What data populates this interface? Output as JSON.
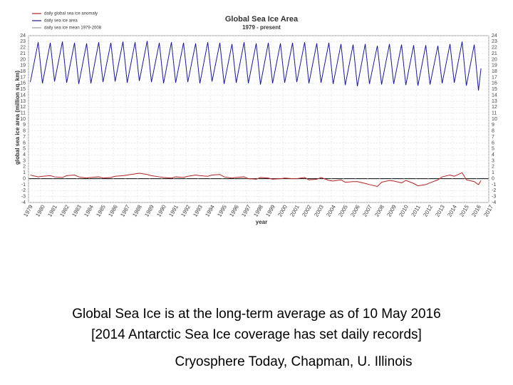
{
  "chart_data": {
    "type": "line",
    "title": "Global Sea Ice Area",
    "subtitle": "1979 - present",
    "xlabel": "year",
    "ylabel": "global sea ice area (million sq. km)",
    "legend": [
      {
        "name": "daily global sea ice anomaly",
        "color": "#b22222"
      },
      {
        "name": "daily sea ice area",
        "color": "#1a1a8c"
      },
      {
        "name": "daily sea ice mean 1979-2008",
        "color": "#999999"
      }
    ],
    "x": [
      1979.15,
      1979.8,
      1980.15,
      1980.8,
      1981.15,
      1981.8,
      1982.15,
      1982.8,
      1983.15,
      1983.8,
      1984.15,
      1984.8,
      1985.15,
      1985.8,
      1986.15,
      1986.8,
      1987.15,
      1987.8,
      1988.15,
      1988.8,
      1989.15,
      1989.8,
      1990.15,
      1990.8,
      1991.15,
      1991.8,
      1992.15,
      1992.8,
      1993.15,
      1993.8,
      1994.15,
      1994.8,
      1995.15,
      1995.8,
      1996.15,
      1996.8,
      1997.15,
      1997.8,
      1998.15,
      1998.8,
      1999.15,
      1999.8,
      2000.15,
      2000.8,
      2001.15,
      2001.8,
      2002.15,
      2002.8,
      2003.15,
      2003.8,
      2004.15,
      2004.8,
      2005.15,
      2005.8,
      2006.15,
      2006.8,
      2007.15,
      2007.8,
      2008.15,
      2008.8,
      2009.15,
      2009.8,
      2010.15,
      2010.8,
      2011.15,
      2011.8,
      2012.15,
      2012.8,
      2013.15,
      2013.8,
      2014.15,
      2014.8,
      2015.15,
      2015.8,
      2016.15,
      2016.36
    ],
    "series": [
      {
        "name": "daily sea ice area",
        "color": "#1a1a8c",
        "values": [
          16.2,
          22.9,
          16.0,
          22.8,
          16.3,
          23.0,
          16.1,
          22.8,
          15.9,
          22.7,
          16.0,
          22.9,
          16.2,
          22.8,
          16.3,
          23.0,
          16.1,
          22.9,
          16.4,
          23.1,
          16.2,
          22.8,
          16.0,
          22.9,
          16.1,
          22.8,
          16.2,
          22.7,
          16.0,
          22.9,
          16.3,
          22.8,
          15.9,
          22.6,
          16.1,
          22.9,
          16.0,
          22.7,
          15.8,
          22.8,
          16.0,
          22.7,
          16.1,
          22.8,
          16.2,
          22.9,
          16.0,
          22.7,
          16.1,
          22.8,
          15.9,
          22.6,
          15.7,
          22.5,
          15.5,
          22.6,
          15.9,
          22.3,
          15.8,
          22.6,
          15.9,
          22.5,
          15.7,
          22.4,
          15.6,
          22.4,
          15.8,
          22.3,
          16.0,
          22.6,
          16.1,
          23.0,
          15.6,
          22.5,
          14.8,
          18.5
        ]
      },
      {
        "name": "daily global sea ice anomaly",
        "color": "#b22222",
        "values": [
          0.6,
          0.3,
          0.4,
          0.5,
          0.3,
          0.2,
          0.5,
          0.6,
          0.3,
          0.1,
          0.2,
          0.3,
          0.1,
          0.2,
          0.4,
          0.5,
          0.6,
          0.8,
          0.9,
          0.7,
          0.5,
          0.3,
          0.2,
          0.1,
          0.3,
          0.2,
          0.4,
          0.6,
          0.5,
          0.4,
          0.6,
          0.7,
          0.3,
          0.1,
          0.2,
          0.3,
          0.0,
          -0.1,
          0.2,
          0.1,
          -0.1,
          0.0,
          0.1,
          0.0,
          0.0,
          0.2,
          -0.2,
          -0.1,
          0.2,
          -0.3,
          -0.4,
          -0.2,
          -0.6,
          -0.5,
          -0.5,
          -0.8,
          -1.0,
          -1.3,
          -0.6,
          -0.3,
          -0.4,
          -0.7,
          -0.3,
          -0.8,
          -1.2,
          -1.0,
          -0.7,
          -0.2,
          0.3,
          0.6,
          0.4,
          1.0,
          -0.2,
          -0.5,
          -1.0,
          -0.3
        ]
      }
    ],
    "xlim": [
      1979,
      2017
    ],
    "xticks": [
      1979,
      1980,
      1981,
      1982,
      1983,
      1984,
      1985,
      1986,
      1987,
      1988,
      1989,
      1990,
      1991,
      1992,
      1993,
      1994,
      1995,
      1996,
      1997,
      1998,
      1999,
      2000,
      2001,
      2002,
      2003,
      2004,
      2005,
      2006,
      2007,
      2008,
      2009,
      2010,
      2011,
      2012,
      2013,
      2014,
      2015,
      2016,
      2017
    ],
    "ylim": [
      -4,
      24
    ],
    "yticks": [
      -4,
      -3,
      -2,
      -1,
      0,
      1,
      2,
      3,
      4,
      5,
      6,
      7,
      8,
      9,
      10,
      11,
      12,
      13,
      14,
      15,
      16,
      17,
      18,
      19,
      20,
      21,
      22,
      23,
      24
    ],
    "grid": true
  },
  "caption": {
    "line1": "Global Sea Ice is at the long-term average as of 10 May 2016",
    "line2": "[2014 Antarctic Sea Ice coverage has set daily records]",
    "line3": "Cryosphere Today, Chapman, U. Illinois"
  }
}
